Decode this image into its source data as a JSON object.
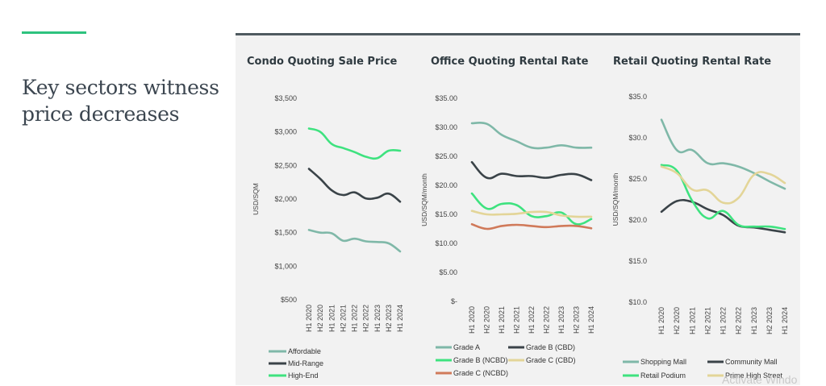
{
  "headline": "Key sectors witness price decreases",
  "watermark": "Activate Windo",
  "colors": {
    "accent": "#2ec27e",
    "affordable": "#7fb8a8",
    "mid_range": "#3a4348",
    "high_end": "#3ee27f",
    "grade_c_cbd": "#e3d598",
    "grade_c_ncbd": "#d07a5a"
  },
  "chart_data": [
    {
      "type": "line",
      "title": "Condo Quoting Sale Price",
      "ylabel": "USD/SQM",
      "ylim": [
        500,
        3500
      ],
      "yticks": [
        "$500",
        "$1,000",
        "$1,500",
        "$2,000",
        "$2,500",
        "$3,000",
        "$3,500"
      ],
      "categories": [
        "H1 2020",
        "H2 2020",
        "H1 2021",
        "H2 2021",
        "H1 2022",
        "H2 2022",
        "H1 2023",
        "H2 2023",
        "H1 2024"
      ],
      "series": [
        {
          "name": "Affordable",
          "color": "#7fb8a8",
          "values": [
            1540,
            1500,
            1490,
            1380,
            1410,
            1370,
            1360,
            1340,
            1220
          ]
        },
        {
          "name": "Mid-Range",
          "color": "#3a4348",
          "values": [
            2450,
            2300,
            2130,
            2060,
            2100,
            2010,
            2020,
            2080,
            1960
          ]
        },
        {
          "name": "High-End",
          "color": "#3ee27f",
          "values": [
            3050,
            3000,
            2820,
            2760,
            2700,
            2630,
            2610,
            2720,
            2720
          ]
        }
      ],
      "legend": "bottom"
    },
    {
      "type": "line",
      "title": "Office Quoting Rental Rate",
      "ylabel": "USD/SQM/month",
      "ylim": [
        0,
        35
      ],
      "yticks": [
        "$-",
        "$5.00",
        "$10.00",
        "$15.00",
        "$20.00",
        "$25.00",
        "$30.00",
        "$35.00"
      ],
      "categories": [
        "H1 2020",
        "H2 2020",
        "H1 2021",
        "H2 2021",
        "H1 2022",
        "H2 2022",
        "H1 2023",
        "H2 2023",
        "H1 2024"
      ],
      "series": [
        {
          "name": "Grade A",
          "color": "#7fb8a8",
          "values": [
            30.7,
            30.6,
            28.7,
            27.6,
            26.5,
            26.5,
            26.9,
            26.5,
            26.5
          ]
        },
        {
          "name": "Grade B (CBD)",
          "color": "#3a4348",
          "values": [
            24.0,
            21.3,
            22.0,
            21.6,
            21.6,
            21.3,
            21.8,
            21.9,
            20.9
          ]
        },
        {
          "name": "Grade B (NCBD)",
          "color": "#3ee27f",
          "values": [
            18.6,
            16.0,
            16.8,
            16.6,
            14.7,
            14.7,
            15.3,
            13.3,
            14.2
          ]
        },
        {
          "name": "Grade C (CBD)",
          "color": "#e3d598",
          "values": [
            15.6,
            15.0,
            15.0,
            15.1,
            15.4,
            15.4,
            14.8,
            14.6,
            14.6
          ]
        },
        {
          "name": "Grade C (NCBD)",
          "color": "#d07a5a",
          "values": [
            13.3,
            12.5,
            13.0,
            13.2,
            13.0,
            12.8,
            13.0,
            13.0,
            12.6
          ]
        }
      ],
      "legend": "bottom"
    },
    {
      "type": "line",
      "title": "Retail Quoting Rental Rate",
      "ylabel": "USD/SQM/month",
      "ylim": [
        10,
        35
      ],
      "yticks": [
        "$10.0",
        "$15.0",
        "$20.0",
        "$25.0",
        "$30.0",
        "$35.0"
      ],
      "categories": [
        "H1 2020",
        "H2 2020",
        "H1 2021",
        "H2 2021",
        "H1 2022",
        "H2 2022",
        "H1 2023",
        "H2 2023",
        "H1 2024"
      ],
      "series": [
        {
          "name": "Shopping Mall",
          "color": "#7fb8a8",
          "values": [
            32.2,
            28.5,
            28.5,
            26.9,
            26.9,
            26.5,
            25.7,
            24.7,
            23.8
          ]
        },
        {
          "name": "Community Mall",
          "color": "#3a4348",
          "values": [
            21.0,
            22.3,
            22.2,
            21.3,
            20.6,
            19.3,
            19.1,
            18.8,
            18.5
          ]
        },
        {
          "name": "Retail Podium",
          "color": "#3ee27f",
          "values": [
            26.7,
            26.0,
            22.3,
            20.2,
            21.1,
            19.4,
            19.2,
            19.2,
            18.9
          ]
        },
        {
          "name": "Prime High Street",
          "color": "#e3d598",
          "values": [
            26.5,
            25.7,
            23.7,
            23.6,
            22.1,
            22.7,
            25.5,
            25.6,
            24.5
          ]
        }
      ],
      "legend": "bottom"
    }
  ]
}
